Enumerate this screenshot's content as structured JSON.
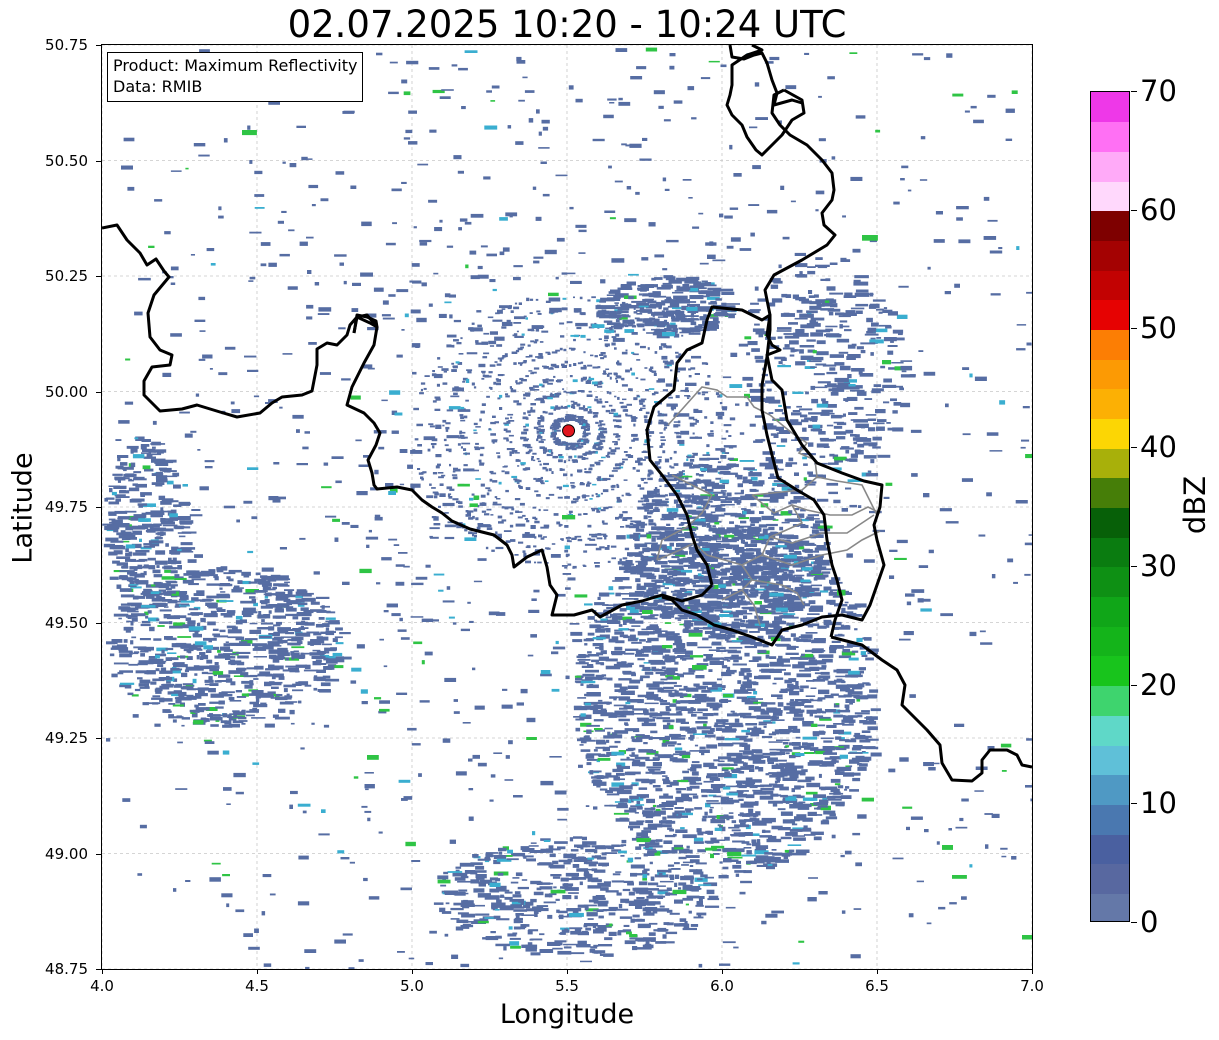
{
  "title": "02.07.2025 10:20 - 10:24 UTC",
  "info": {
    "product": "Product: Maximum Reflectivity",
    "data": "Data: RMIB"
  },
  "axes": {
    "xlabel": "Longitude",
    "ylabel": "Latitude",
    "xlim": [
      4.0,
      7.0
    ],
    "ylim": [
      48.75,
      50.75
    ],
    "xticks": [
      "4.0",
      "4.5",
      "5.0",
      "5.5",
      "6.0",
      "6.5",
      "7.0"
    ],
    "yticks": [
      "50.75",
      "50.50",
      "50.25",
      "50.00",
      "49.75",
      "49.50",
      "49.25",
      "49.00",
      "48.75"
    ],
    "grid": true
  },
  "radar_site": {
    "lon": 5.505,
    "lat": 49.915,
    "color": "#e0161e"
  },
  "colorbar": {
    "label": "dBZ",
    "min": 0,
    "max": 70,
    "ticks": [
      "0",
      "10",
      "20",
      "30",
      "40",
      "50",
      "60",
      "70"
    ],
    "colors": [
      "#6478a8",
      "#5868a0",
      "#4a60a0",
      "#4a78b0",
      "#4f99c4",
      "#5fc0d8",
      "#5fd8c8",
      "#3ed46e",
      "#18c41c",
      "#14b41a",
      "#10a618",
      "#0e9014",
      "#0a7c10",
      "#076008",
      "#467e08",
      "#a8b00a",
      "#fcd604",
      "#fcb004",
      "#fc9a04",
      "#fc7e04",
      "#e60202",
      "#c20202",
      "#a40202",
      "#7e0000",
      "#ffd8fc",
      "#ffaaf8",
      "#ff70f4",
      "#ee38e8"
    ]
  },
  "echo_colors": {
    "weak": "#566da3",
    "medium": "#3aaed0",
    "strong": "#2fc445"
  },
  "borders": {
    "country_color": "#000000",
    "district_color": "#888888"
  }
}
